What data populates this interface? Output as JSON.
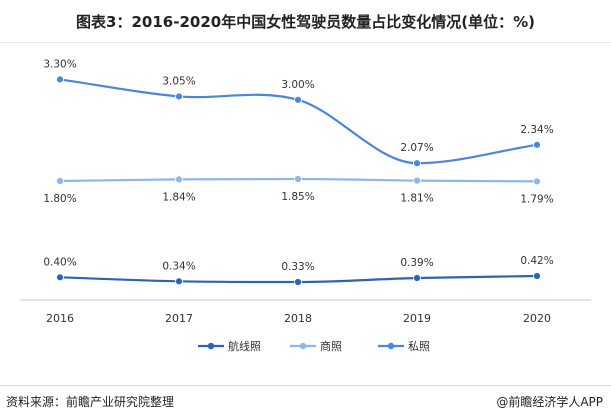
{
  "title": "图表3：2016-2020年中国女性驾驶员数量占比变化情况(单位：%)",
  "source": "资料来源：前瞻产业研究院整理",
  "brand": "@前瞻经济学人APP",
  "colors": {
    "航线照": "#2e62b8",
    "商照": "#8fb5ea",
    "私照": "#4a86e0",
    "axis": "#c8c8c8",
    "label": "#333333"
  },
  "chart_data": {
    "type": "line",
    "x": [
      "2016",
      "2017",
      "2018",
      "2019",
      "2020"
    ],
    "series": [
      {
        "name": "航线照",
        "values": [
          0.4,
          0.34,
          0.33,
          0.39,
          0.42
        ],
        "labels": [
          "0.40%",
          "0.34%",
          "0.33%",
          "0.39%",
          "0.42%"
        ]
      },
      {
        "name": "商照",
        "values": [
          1.8,
          1.84,
          1.85,
          1.81,
          1.79
        ],
        "labels": [
          "1.80%",
          "1.84%",
          "1.85%",
          "1.81%",
          "1.79%"
        ]
      },
      {
        "name": "私照",
        "values": [
          3.3,
          3.05,
          3.0,
          2.07,
          2.34
        ],
        "labels": [
          "3.30%",
          "3.05%",
          "3.00%",
          "2.07%",
          "2.34%"
        ]
      }
    ],
    "grid": false,
    "legend_position": "bottom",
    "smooth": true
  }
}
